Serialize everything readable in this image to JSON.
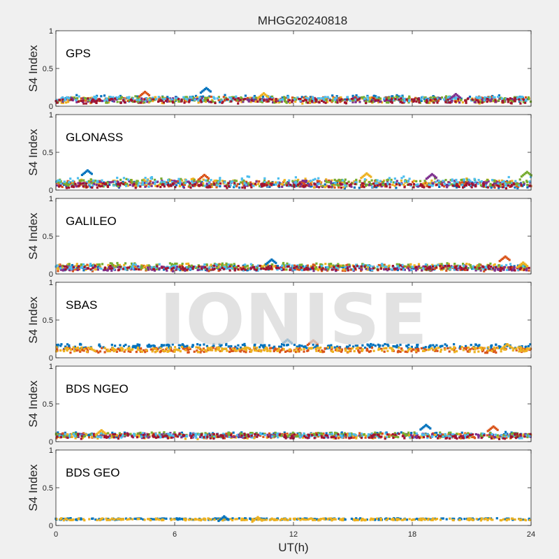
{
  "chart_data": {
    "type": "scatter",
    "title": "MHGG20240818",
    "xlabel": "UT(h)",
    "ylabel": "S4 Index",
    "xlim": [
      0,
      24
    ],
    "ylim": [
      0,
      1
    ],
    "xticks": [
      0,
      6,
      12,
      18,
      24
    ],
    "yticks": [
      0,
      0.5,
      1
    ],
    "ytick_labels": [
      "0",
      "0.5",
      "1"
    ],
    "watermark": "IONISE",
    "series_colors": [
      "#0072bd",
      "#d95319",
      "#edb120",
      "#7e2f8e",
      "#77ac30",
      "#4dbeee",
      "#a2142f"
    ],
    "panels": [
      {
        "label": "GPS",
        "bands": [
          {
            "color": "#0072bd",
            "base": 0.1,
            "spread": 0.04
          },
          {
            "color": "#d95319",
            "base": 0.09,
            "spread": 0.03
          },
          {
            "color": "#edb120",
            "base": 0.08,
            "spread": 0.04
          },
          {
            "color": "#7e2f8e",
            "base": 0.08,
            "spread": 0.03
          },
          {
            "color": "#77ac30",
            "base": 0.09,
            "spread": 0.04
          },
          {
            "color": "#4dbeee",
            "base": 0.1,
            "spread": 0.03
          },
          {
            "color": "#a2142f",
            "base": 0.07,
            "spread": 0.03
          }
        ],
        "peaks": [
          {
            "x": 7.6,
            "y": 0.24
          },
          {
            "x": 4.5,
            "y": 0.19
          },
          {
            "x": 10.5,
            "y": 0.17
          },
          {
            "x": 20.2,
            "y": 0.16
          }
        ]
      },
      {
        "label": "GLONASS",
        "bands": [
          {
            "color": "#0072bd",
            "base": 0.07,
            "spread": 0.04
          },
          {
            "color": "#d95319",
            "base": 0.08,
            "spread": 0.04
          },
          {
            "color": "#edb120",
            "base": 0.09,
            "spread": 0.05
          },
          {
            "color": "#7e2f8e",
            "base": 0.08,
            "spread": 0.04
          },
          {
            "color": "#77ac30",
            "base": 0.1,
            "spread": 0.05
          },
          {
            "color": "#4dbeee",
            "base": 0.11,
            "spread": 0.06
          },
          {
            "color": "#a2142f",
            "base": 0.06,
            "spread": 0.03
          }
        ],
        "peaks": [
          {
            "x": 1.6,
            "y": 0.26
          },
          {
            "x": 7.5,
            "y": 0.2
          },
          {
            "x": 15.7,
            "y": 0.22
          },
          {
            "x": 19.0,
            "y": 0.21
          },
          {
            "x": 23.8,
            "y": 0.24
          }
        ]
      },
      {
        "label": "GALILEO",
        "bands": [
          {
            "color": "#0072bd",
            "base": 0.08,
            "spread": 0.03
          },
          {
            "color": "#d95319",
            "base": 0.08,
            "spread": 0.04
          },
          {
            "color": "#edb120",
            "base": 0.09,
            "spread": 0.04
          },
          {
            "color": "#7e2f8e",
            "base": 0.07,
            "spread": 0.03
          },
          {
            "color": "#77ac30",
            "base": 0.1,
            "spread": 0.04
          },
          {
            "color": "#4dbeee",
            "base": 0.09,
            "spread": 0.04
          },
          {
            "color": "#a2142f",
            "base": 0.08,
            "spread": 0.03
          }
        ],
        "peaks": [
          {
            "x": 10.9,
            "y": 0.19
          },
          {
            "x": 22.7,
            "y": 0.23
          },
          {
            "x": 23.6,
            "y": 0.15
          }
        ]
      },
      {
        "label": "SBAS",
        "bands": [
          {
            "color": "#0072bd",
            "base": 0.15,
            "spread": 0.03
          },
          {
            "color": "#d95319",
            "base": 0.1,
            "spread": 0.03
          },
          {
            "color": "#edb120",
            "base": 0.11,
            "spread": 0.03
          }
        ],
        "peaks": [
          {
            "x": 11.7,
            "y": 0.24
          },
          {
            "x": 13.0,
            "y": 0.23
          },
          {
            "x": 22.8,
            "y": 0.18
          }
        ]
      },
      {
        "label": "BDS NGEO",
        "bands": [
          {
            "color": "#0072bd",
            "base": 0.09,
            "spread": 0.03
          },
          {
            "color": "#d95319",
            "base": 0.08,
            "spread": 0.03
          },
          {
            "color": "#edb120",
            "base": 0.07,
            "spread": 0.03
          },
          {
            "color": "#7e2f8e",
            "base": 0.08,
            "spread": 0.03
          },
          {
            "color": "#77ac30",
            "base": 0.09,
            "spread": 0.03
          },
          {
            "color": "#4dbeee",
            "base": 0.08,
            "spread": 0.03
          },
          {
            "color": "#a2142f",
            "base": 0.07,
            "spread": 0.03
          }
        ],
        "peaks": [
          {
            "x": 18.7,
            "y": 0.22
          },
          {
            "x": 22.1,
            "y": 0.2
          },
          {
            "x": 2.3,
            "y": 0.15
          }
        ]
      },
      {
        "label": "BDS GEO",
        "bands": [
          {
            "color": "#0072bd",
            "base": 0.085,
            "spread": 0.01
          },
          {
            "color": "#edb120",
            "base": 0.08,
            "spread": 0.012
          }
        ],
        "peaks": [
          {
            "x": 8.5,
            "y": 0.12
          },
          {
            "x": 10.2,
            "y": 0.11
          }
        ]
      }
    ]
  }
}
